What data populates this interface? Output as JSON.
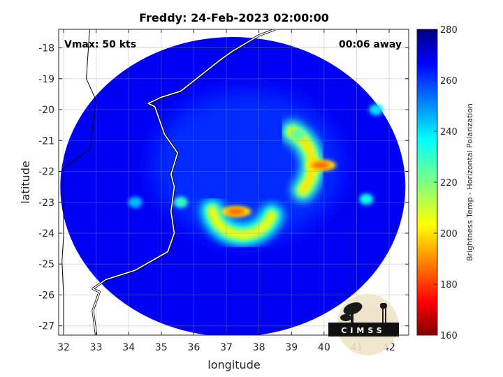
{
  "chart_data": {
    "type": "heatmap",
    "title": "Freddy: 24-Feb-2023 02:00:00",
    "xlabel": "longitude",
    "ylabel": "latitude",
    "xlim": [
      31.85,
      42.6
    ],
    "ylim": [
      -27.3,
      -17.4
    ],
    "xticks": [
      32,
      33,
      34,
      35,
      36,
      37,
      38,
      39,
      40,
      41,
      42
    ],
    "yticks": [
      -18,
      -19,
      -20,
      -21,
      -22,
      -23,
      -24,
      -25,
      -26,
      -27
    ],
    "grid": true,
    "annotations": {
      "vmax": "Vmax: 50 kts",
      "offset": "00:06 away"
    },
    "colorbar": {
      "label": "Brightness Temp - Horizontal Polarization",
      "range": [
        160,
        280
      ],
      "ticks": [
        280,
        260,
        240,
        220,
        200,
        180,
        160
      ],
      "colormap": "jet"
    },
    "swath": {
      "center_lon": 37.2,
      "center_lat": -22.5,
      "radius_lon": 5.3,
      "radius_lat": 4.85
    },
    "features": [
      {
        "kind": "rainband",
        "center": [
          37.5,
          -23.1
        ],
        "radius": 0.95,
        "arc_start_deg": 190,
        "arc_end_deg": 340,
        "temp": 205
      },
      {
        "kind": "rainband",
        "center": [
          38.4,
          -21.8
        ],
        "radius": 1.25,
        "arc_start_deg": 320,
        "arc_end_deg": 420,
        "temp": 200
      },
      {
        "kind": "core",
        "lon": 37.3,
        "lat": -23.3,
        "temp": 185
      },
      {
        "kind": "core",
        "lon": 39.9,
        "lat": -21.8,
        "temp": 185
      },
      {
        "kind": "cell",
        "lon": 39.2,
        "lat": -20.8,
        "temp": 225
      },
      {
        "kind": "cell",
        "lon": 35.6,
        "lat": -23.0,
        "temp": 230
      },
      {
        "kind": "cell",
        "lon": 41.6,
        "lat": -20.0,
        "temp": 240
      },
      {
        "kind": "cell",
        "lon": 41.3,
        "lat": -22.9,
        "temp": 235
      },
      {
        "kind": "cell",
        "lon": 34.2,
        "lat": -23.0,
        "temp": 245
      }
    ],
    "coastline": [
      [
        33.0,
        -27.3
      ],
      [
        32.9,
        -26.5
      ],
      [
        33.1,
        -25.9
      ],
      [
        32.9,
        -25.8
      ],
      [
        33.3,
        -25.5
      ],
      [
        34.2,
        -25.2
      ],
      [
        35.2,
        -24.6
      ],
      [
        35.4,
        -24.0
      ],
      [
        35.3,
        -23.3
      ],
      [
        35.4,
        -22.5
      ],
      [
        35.3,
        -22.1
      ],
      [
        35.5,
        -21.4
      ],
      [
        35.1,
        -20.8
      ],
      [
        34.8,
        -19.9
      ],
      [
        34.6,
        -19.8
      ],
      [
        35.0,
        -19.6
      ],
      [
        35.6,
        -19.4
      ],
      [
        36.2,
        -18.9
      ],
      [
        36.8,
        -18.4
      ],
      [
        37.2,
        -18.1
      ],
      [
        38.0,
        -17.6
      ],
      [
        38.5,
        -17.4
      ]
    ],
    "border": [
      [
        32.0,
        -27.3
      ],
      [
        32.0,
        -26.0
      ],
      [
        31.95,
        -24.9
      ],
      [
        32.0,
        -24.1
      ],
      [
        32.0,
        -21.9
      ],
      [
        32.8,
        -21.3
      ],
      [
        32.9,
        -20.5
      ],
      [
        33.0,
        -19.7
      ],
      [
        32.7,
        -19.0
      ],
      [
        32.8,
        -17.4
      ]
    ],
    "logo": {
      "text": "CIMSS",
      "position": "bottom-right"
    }
  }
}
